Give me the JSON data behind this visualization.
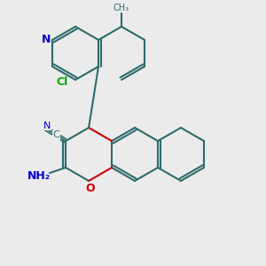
{
  "bg_color": "#ebebeb",
  "bond_color": "#2d6b6b",
  "N_color": "#0000cc",
  "O_color": "#cc0000",
  "Cl_color": "#00aa00",
  "bond_lw": 1.5,
  "figsize": [
    3.0,
    3.0
  ],
  "dpi": 100,
  "xlim": [
    0,
    10
  ],
  "ylim": [
    0,
    10
  ]
}
